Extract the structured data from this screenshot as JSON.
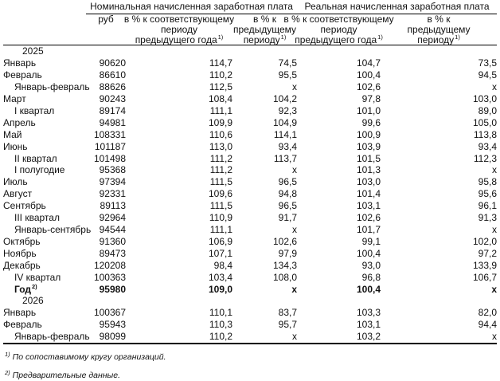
{
  "page": {
    "background": "#ffffff",
    "text_color": "#111111",
    "line_color": "#000000"
  },
  "table": {
    "group_headers": {
      "nominal": "Номинальная начисленная заработная плата",
      "real": "Реальная начисленная заработная плата"
    },
    "subheaders": {
      "rub": "руб",
      "yoy_line1": "в % к соответствующему",
      "yoy_line2": "периоду",
      "yoy_line3": "предыдущего года",
      "yoy_sup": "1)",
      "mom_line1": "в % к",
      "mom_line2": "предыдущему",
      "mom_line3": "периоду",
      "mom_sup": "1)"
    },
    "rows": [
      {
        "type": "year",
        "label": "2025"
      },
      {
        "type": "data",
        "label": "Январь",
        "indent": 0,
        "cells": [
          "90620",
          "114,7",
          "74,5",
          "104,7",
          "73,5"
        ]
      },
      {
        "type": "data",
        "label": "Февраль",
        "indent": 0,
        "cells": [
          "86610",
          "110,2",
          "95,5",
          "100,4",
          "94,5"
        ]
      },
      {
        "type": "data",
        "label": "Январь-февраль",
        "indent": 1,
        "cells": [
          "88626",
          "112,5",
          "x",
          "102,6",
          "x"
        ]
      },
      {
        "type": "data",
        "label": "Март",
        "indent": 0,
        "cells": [
          "90243",
          "108,4",
          "104,2",
          "97,8",
          "103,0"
        ]
      },
      {
        "type": "data",
        "label": "I квартал",
        "indent": 1,
        "cells": [
          "89174",
          "111,1",
          "92,3",
          "101,0",
          "89,0"
        ]
      },
      {
        "type": "data",
        "label": "Апрель",
        "indent": 0,
        "cells": [
          "94981",
          "109,9",
          "104,9",
          "99,6",
          "105,0"
        ]
      },
      {
        "type": "data",
        "label": "Май",
        "indent": 0,
        "cells": [
          "108331",
          "110,6",
          "114,1",
          "100,9",
          "113,8"
        ]
      },
      {
        "type": "data",
        "label": "Июнь",
        "indent": 0,
        "cells": [
          "101187",
          "113,0",
          "93,4",
          "103,9",
          "93,4"
        ]
      },
      {
        "type": "data",
        "label": "II квартал",
        "indent": 1,
        "cells": [
          "101498",
          "111,2",
          "113,7",
          "101,5",
          "112,3"
        ]
      },
      {
        "type": "data",
        "label": "I полугодие",
        "indent": 1,
        "cells": [
          "95368",
          "111,2",
          "x",
          "101,3",
          "x"
        ]
      },
      {
        "type": "data",
        "label": "Июль",
        "indent": 0,
        "cells": [
          "97394",
          "111,5",
          "96,5",
          "103,0",
          "95,8"
        ]
      },
      {
        "type": "data",
        "label": "Август",
        "indent": 0,
        "cells": [
          "92331",
          "109,6",
          "94,8",
          "101,4",
          "95,6"
        ]
      },
      {
        "type": "data",
        "label": "Сентябрь",
        "indent": 0,
        "cells": [
          "89113",
          "111,5",
          "96,5",
          "103,1",
          "96,1"
        ]
      },
      {
        "type": "data",
        "label": "III квартал",
        "indent": 1,
        "cells": [
          "92964",
          "110,9",
          "91,7",
          "102,6",
          "91,3"
        ]
      },
      {
        "type": "data",
        "label": "Январь-сентябрь",
        "indent": 1,
        "cells": [
          "94544",
          "111,1",
          "x",
          "101,7",
          "x"
        ]
      },
      {
        "type": "data",
        "label": "Октябрь",
        "indent": 0,
        "cells": [
          "91360",
          "106,9",
          "102,6",
          "99,1",
          "102,0"
        ]
      },
      {
        "type": "data",
        "label": "Ноябрь",
        "indent": 0,
        "cells": [
          "89473",
          "107,1",
          "97,9",
          "100,4",
          "97,2"
        ]
      },
      {
        "type": "data",
        "label": "Декабрь",
        "indent": 0,
        "cells": [
          "120208",
          "98,4",
          "134,3",
          "93,0",
          "133,9"
        ]
      },
      {
        "type": "data",
        "label": "IV квартал",
        "indent": 1,
        "cells": [
          "100363",
          "103,4",
          "108,0",
          "96,8",
          "106,7"
        ]
      },
      {
        "type": "data",
        "label": "Год",
        "sup": "2)",
        "indent": 1,
        "bold": true,
        "cells": [
          "95980",
          "109,0",
          "x",
          "100,4",
          "x"
        ]
      },
      {
        "type": "year",
        "label": "2026"
      },
      {
        "type": "data",
        "label": "Январь",
        "indent": 0,
        "cells": [
          "100367",
          "110,1",
          "83,7",
          "103,3",
          "82,0"
        ]
      },
      {
        "type": "data",
        "label": "Февраль",
        "indent": 0,
        "cells": [
          "95943",
          "110,3",
          "95,7",
          "103,1",
          "94,4"
        ]
      },
      {
        "type": "data",
        "label": "Январь-февраль",
        "indent": 1,
        "cells": [
          "98099",
          "110,2",
          "x",
          "103,2",
          "x"
        ]
      }
    ]
  },
  "footnotes": [
    {
      "mark": "1)",
      "text": "По сопоставимому кругу организаций."
    },
    {
      "mark": "2)",
      "text": "Предварительные данные."
    }
  ]
}
